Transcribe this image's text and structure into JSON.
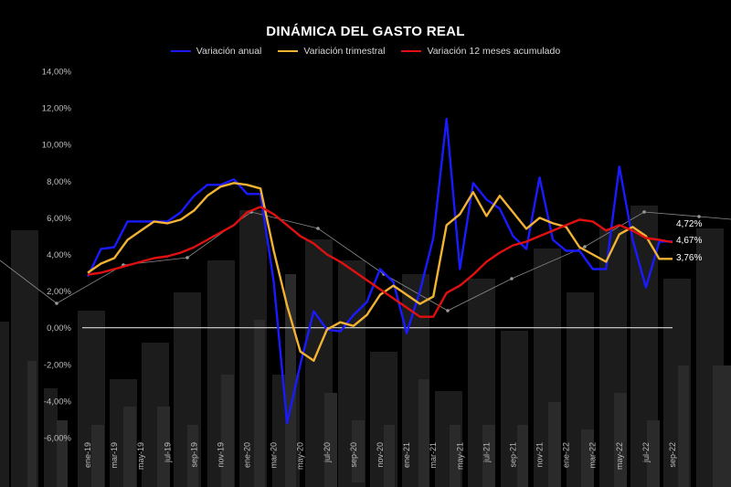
{
  "chart_data": {
    "type": "line",
    "title": "DINÁMICA DEL GASTO REAL",
    "xlabel": "",
    "ylabel": "",
    "ylim": [
      -6,
      14
    ],
    "yticks": [
      "-6,00%",
      "-4,00%",
      "-2,00%",
      "0,00%",
      "2,00%",
      "4,00%",
      "6,00%",
      "8,00%",
      "10,00%",
      "12,00%",
      "14,00%"
    ],
    "grid": false,
    "legend_position": "top",
    "categories": [
      "ene-19",
      "feb-19",
      "mar-19",
      "abr-19",
      "may-19",
      "jun-19",
      "jul-19",
      "ago-19",
      "sep-19",
      "oct-19",
      "nov-19",
      "dic-19",
      "ene-20",
      "feb-20",
      "mar-20",
      "abr-20",
      "may-20",
      "jun-20",
      "jul-20",
      "ago-20",
      "sep-20",
      "oct-20",
      "nov-20",
      "dic-20",
      "ene-21",
      "feb-21",
      "mar-21",
      "abr-21",
      "may-21",
      "jun-21",
      "jul-21",
      "ago-21",
      "sep-21",
      "oct-21",
      "nov-21",
      "dic-21",
      "ene-22",
      "feb-22",
      "mar-22",
      "abr-22",
      "may-22",
      "jun-22",
      "jul-22",
      "ago-22",
      "sep-22"
    ],
    "xtick_labels": [
      "ene-19",
      "mar-19",
      "may-19",
      "jul-19",
      "sep-19",
      "nov-19",
      "ene-20",
      "mar-20",
      "may-20",
      "jul-20",
      "sep-20",
      "nov-20",
      "ene-21",
      "mar-21",
      "may-21",
      "jul-21",
      "sep-21",
      "nov-21",
      "ene-22",
      "mar-22",
      "may-22",
      "jul-22",
      "sep-22"
    ],
    "series": [
      {
        "name": "Variación anual",
        "color": "#1a1aff",
        "values": [
          2.8,
          4.3,
          4.4,
          5.8,
          5.8,
          5.8,
          5.8,
          6.3,
          7.2,
          7.8,
          7.8,
          8.1,
          7.3,
          7.3,
          2.5,
          -5.2,
          -2.0,
          0.9,
          -0.1,
          -0.2,
          0.7,
          1.4,
          3.2,
          2.5,
          -0.3,
          2.0,
          4.9,
          11.4,
          3.2,
          7.9,
          7.0,
          6.5,
          5.0,
          4.3,
          8.2,
          4.8,
          4.2,
          4.2,
          3.2,
          3.2,
          8.8,
          4.8,
          2.2,
          4.7,
          4.72
        ]
      },
      {
        "name": "Variación trimestral",
        "color": "#f2b233",
        "values": [
          3.0,
          3.5,
          3.8,
          4.8,
          5.3,
          5.8,
          5.7,
          5.9,
          6.4,
          7.2,
          7.7,
          7.9,
          7.8,
          7.6,
          4.2,
          1.2,
          -1.3,
          -1.8,
          -0.1,
          0.3,
          0.1,
          0.7,
          1.8,
          2.3,
          1.8,
          1.3,
          1.7,
          5.6,
          6.2,
          7.4,
          6.1,
          7.2,
          6.3,
          5.4,
          6.0,
          5.7,
          5.5,
          4.4,
          4.0,
          3.6,
          5.1,
          5.5,
          5.0,
          3.76,
          3.76
        ]
      },
      {
        "name": "Variación 12 meses acumulado",
        "color": "#e01010",
        "values": [
          2.9,
          3.0,
          3.2,
          3.4,
          3.6,
          3.8,
          3.9,
          4.1,
          4.4,
          4.8,
          5.2,
          5.6,
          6.3,
          6.6,
          6.2,
          5.6,
          5.0,
          4.6,
          4.0,
          3.6,
          3.1,
          2.6,
          2.1,
          1.6,
          1.1,
          0.6,
          0.6,
          1.9,
          2.3,
          2.9,
          3.6,
          4.1,
          4.5,
          4.7,
          5.0,
          5.3,
          5.6,
          5.9,
          5.8,
          5.3,
          5.6,
          5.3,
          4.9,
          4.8,
          4.67
        ]
      }
    ],
    "end_labels": [
      "4,72%",
      "4,67%",
      "3,76%"
    ]
  }
}
